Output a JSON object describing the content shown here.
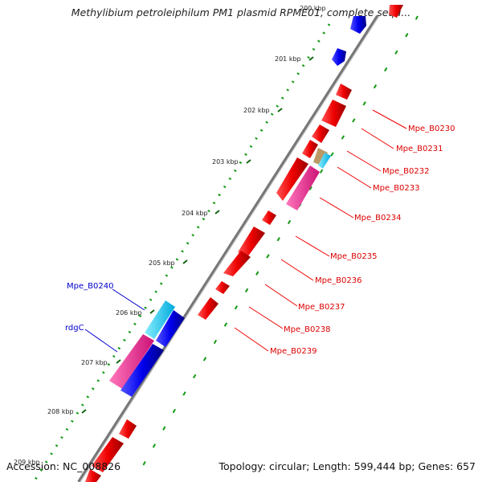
{
  "title": "Methylibium petroleiphilum PM1 plasmid RPME01, complete sequ...",
  "footer": {
    "accession": "Accession: NC_008826",
    "summary": "Topology: circular; Length: 599,444 bp; Genes: 657"
  },
  "ticks": [
    {
      "label": "200 kbp",
      "faded": true
    },
    {
      "label": "201 kbp"
    },
    {
      "label": "202 kbp"
    },
    {
      "label": "203 kbp"
    },
    {
      "label": "204 kbp"
    },
    {
      "label": "205 kbp"
    },
    {
      "label": "206 kbp"
    },
    {
      "label": "207 kbp"
    },
    {
      "label": "208 kbp"
    },
    {
      "label": "209 kbp",
      "faded": true
    }
  ],
  "genes_right": [
    {
      "label": "Mpe_B0230"
    },
    {
      "label": "Mpe_B0231"
    },
    {
      "label": "Mpe_B0232"
    },
    {
      "label": "Mpe_B0233"
    },
    {
      "label": "Mpe_B0234"
    },
    {
      "label": "Mpe_B0235"
    },
    {
      "label": "Mpe_B0236"
    },
    {
      "label": "Mpe_B0237"
    },
    {
      "label": "Mpe_B0238"
    },
    {
      "label": "Mpe_B0239"
    }
  ],
  "genes_left": [
    {
      "label": "Mpe_B0240"
    },
    {
      "label": "rdgC"
    }
  ],
  "colors": {
    "cds": "#ff0000",
    "gene_blue": "#0000ff",
    "rrna_cyan": "#00ccff",
    "trna_pink": "#ff3399",
    "other_tan": "#bb9966",
    "backbone": "#888888",
    "dots": "#009900",
    "label_red": "#dd0000",
    "label_blue": "#0000cc"
  }
}
